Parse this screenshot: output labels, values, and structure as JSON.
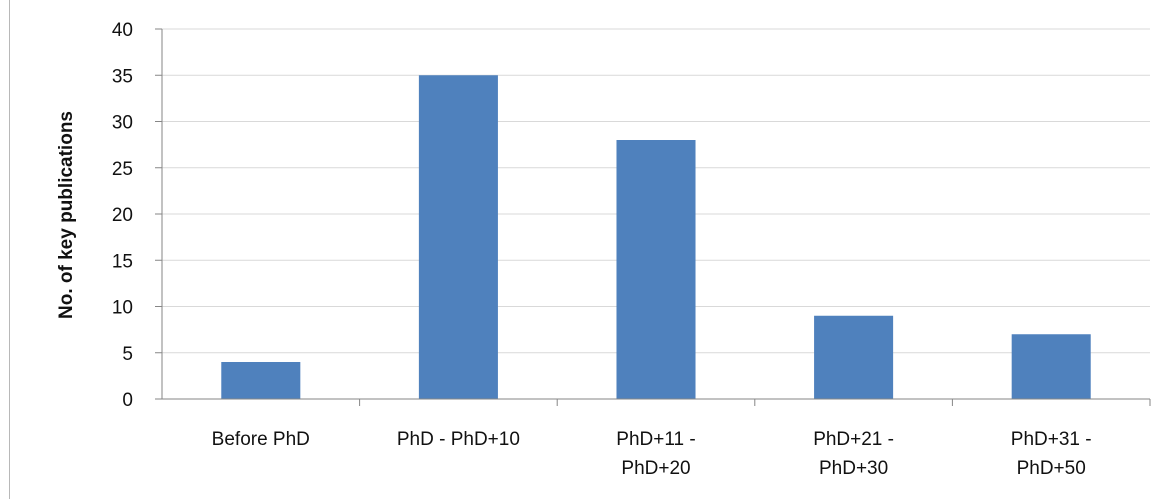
{
  "chart_data": {
    "type": "bar",
    "categories": [
      [
        "Before PhD"
      ],
      [
        "PhD - PhD+10"
      ],
      [
        "PhD+11 -",
        "PhD+20"
      ],
      [
        "PhD+21 -",
        "PhD+30"
      ],
      [
        "PhD+31 -",
        "PhD+50"
      ]
    ],
    "values": [
      4,
      35,
      28,
      9,
      7
    ],
    "ylabel": "No. of key publications",
    "ylim": [
      0,
      40
    ],
    "yticks": [
      0,
      5,
      10,
      15,
      20,
      25,
      30,
      35,
      40
    ],
    "grid": true,
    "bar_color": "#4f81bd",
    "grid_color": "#d9d9d9",
    "axis_color": "#868686"
  }
}
